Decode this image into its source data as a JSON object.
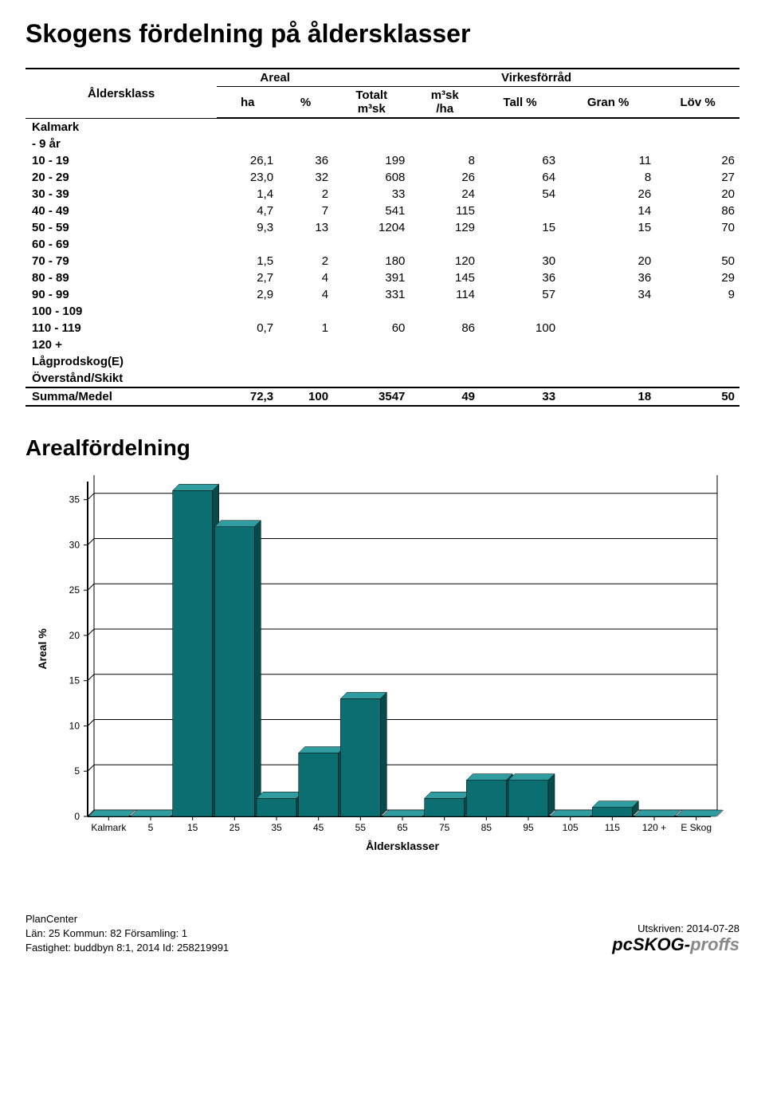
{
  "page": {
    "title": "Skogens fördelning på åldersklasser",
    "chart_title": "Arealfördelning"
  },
  "table": {
    "row_header": "Åldersklass",
    "group_areal": "Areal",
    "group_virkes": "Virkesförråd",
    "col_ha": "ha",
    "col_pct": "%",
    "col_totalt": "Totalt\nm³sk",
    "col_m3ha": "m³sk\n/ha",
    "col_tall": "Tall %",
    "col_gran": "Gran %",
    "col_lov": "Löv %",
    "rows": [
      {
        "label": "Kalmark"
      },
      {
        "label": "     -   9 år"
      },
      {
        "label": "10 -  19",
        "ha": "26,1",
        "pct": "36",
        "tot": "199",
        "m3": "8",
        "tall": "63",
        "gran": "11",
        "lov": "26"
      },
      {
        "label": "20 -  29",
        "ha": "23,0",
        "pct": "32",
        "tot": "608",
        "m3": "26",
        "tall": "64",
        "gran": "8",
        "lov": "27"
      },
      {
        "label": "30 -  39",
        "ha": "1,4",
        "pct": "2",
        "tot": "33",
        "m3": "24",
        "tall": "54",
        "gran": "26",
        "lov": "20"
      },
      {
        "label": "40 -  49",
        "ha": "4,7",
        "pct": "7",
        "tot": "541",
        "m3": "115",
        "tall": "",
        "gran": "14",
        "lov": "86"
      },
      {
        "label": "50 -  59",
        "ha": "9,3",
        "pct": "13",
        "tot": "1204",
        "m3": "129",
        "tall": "15",
        "gran": "15",
        "lov": "70"
      },
      {
        "label": "60 -  69"
      },
      {
        "label": "70 -  79",
        "ha": "1,5",
        "pct": "2",
        "tot": "180",
        "m3": "120",
        "tall": "30",
        "gran": "20",
        "lov": "50"
      },
      {
        "label": "80 -  89",
        "ha": "2,7",
        "pct": "4",
        "tot": "391",
        "m3": "145",
        "tall": "36",
        "gran": "36",
        "lov": "29"
      },
      {
        "label": "90 -  99",
        "ha": "2,9",
        "pct": "4",
        "tot": "331",
        "m3": "114",
        "tall": "57",
        "gran": "34",
        "lov": "9"
      },
      {
        "label": "100 - 109"
      },
      {
        "label": "110 - 119",
        "ha": "0,7",
        "pct": "1",
        "tot": "60",
        "m3": "86",
        "tall": "100",
        "gran": "",
        "lov": ""
      },
      {
        "label": "120 +"
      },
      {
        "label": "Lågprodskog(E)"
      },
      {
        "label": "Överstånd/Skikt"
      }
    ],
    "summary": {
      "label": "Summa/Medel",
      "ha": "72,3",
      "pct": "100",
      "tot": "3547",
      "m3": "49",
      "tall": "33",
      "gran": "18",
      "lov": "50"
    }
  },
  "chart": {
    "type": "bar",
    "y_label": "Areal %",
    "x_label": "Åldersklasser",
    "y_ticks": [
      0,
      5,
      10,
      15,
      20,
      25,
      30,
      35
    ],
    "ylim": [
      0,
      37
    ],
    "categories": [
      "Kalmark",
      "5",
      "15",
      "25",
      "35",
      "45",
      "55",
      "65",
      "75",
      "85",
      "95",
      "105",
      "115",
      "120 +",
      "E Skog"
    ],
    "values": [
      0,
      0,
      36,
      32,
      2,
      7,
      13,
      0,
      2,
      4,
      4,
      0,
      1,
      0,
      0
    ],
    "bar_face": "#0b6f72",
    "bar_top": "#2f9da0",
    "bar_side": "#064a4c",
    "axis_color": "#000000",
    "grid_color": "#000000",
    "background_color": "#ffffff",
    "bar_width_ratio": 0.95,
    "depth": 8,
    "title_fontsize": 28,
    "tick_fontsize": 12,
    "label_fontsize": 14
  },
  "footer": {
    "left1": "PlanCenter",
    "left2": "Län: 25  Kommun: 82  Församling: 1",
    "left3": "Fastighet: buddbyn 8:1,  2014    Id: 258219991",
    "right1": "Utskriven: 2014-07-28",
    "brand_pre": "pcSKOG-",
    "brand_post": "proffs"
  }
}
